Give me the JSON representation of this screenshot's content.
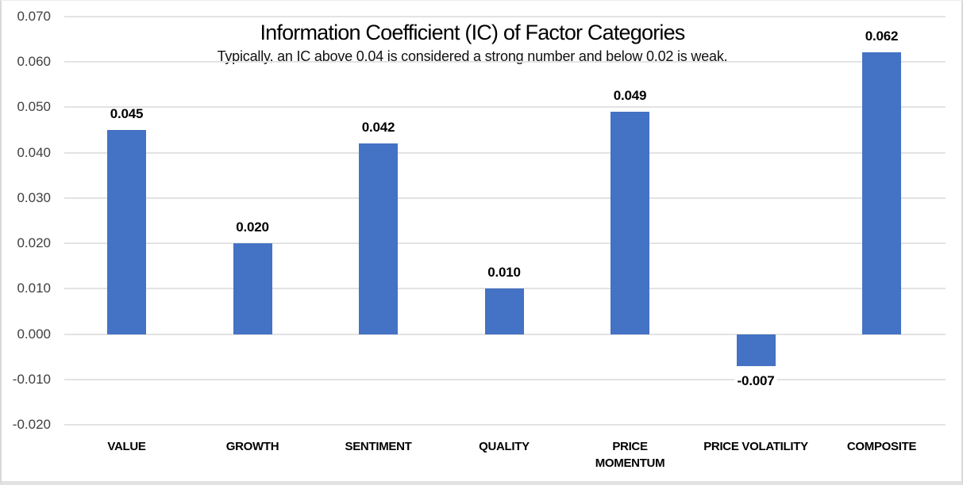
{
  "chart_data": {
    "type": "bar",
    "title": "Information Coefficient (IC) of Factor Categories",
    "subtitle": "Typically, an IC above 0.04 is considered a strong number and below 0.02 is weak.",
    "categories": [
      "VALUE",
      "GROWTH",
      "SENTIMENT",
      "QUALITY",
      "PRICE MOMENTUM",
      "PRICE VOLATILITY",
      "COMPOSITE"
    ],
    "category_display": [
      "VALUE",
      "GROWTH",
      "SENTIMENT",
      "QUALITY",
      "PRICE\nMOMENTUM",
      "PRICE VOLATILITY",
      "COMPOSITE"
    ],
    "values": [
      0.045,
      0.02,
      0.042,
      0.01,
      0.049,
      -0.007,
      0.062
    ],
    "value_labels": [
      "0.045",
      "0.020",
      "0.042",
      "0.010",
      "0.049",
      "-0.007",
      "0.062"
    ],
    "ylim": [
      -0.02,
      0.07
    ],
    "ytick_step": 0.01,
    "ytick_labels": [
      "0.070",
      "0.060",
      "0.050",
      "0.040",
      "0.030",
      "0.020",
      "0.010",
      "0.000",
      "-0.010",
      "-0.020"
    ],
    "ytick_values": [
      0.07,
      0.06,
      0.05,
      0.04,
      0.03,
      0.02,
      0.01,
      0.0,
      -0.01,
      -0.02
    ],
    "grid": true,
    "legend": false,
    "xlabel": "",
    "ylabel": "",
    "bar_color": "#4472C4",
    "gridline_color": "#E3E3E3",
    "title_color": "#000000",
    "tick_color": "#404040"
  }
}
